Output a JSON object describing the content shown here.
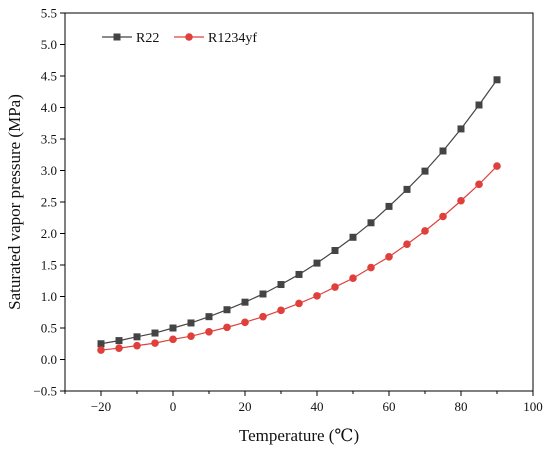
{
  "chart_data": {
    "type": "line",
    "title": "",
    "xlabel": "Temperature (℃)",
    "ylabel": "Saturated vapor pressure (MPa)",
    "xlim": [
      -30,
      100
    ],
    "ylim": [
      -0.5,
      5.5
    ],
    "x_ticks": [
      -20,
      0,
      20,
      40,
      60,
      80,
      100
    ],
    "x_tick_labels": [
      "−20",
      "0",
      "20",
      "40",
      "60",
      "80",
      "100"
    ],
    "y_ticks": [
      -0.5,
      0.0,
      0.5,
      1.0,
      1.5,
      2.0,
      2.5,
      3.0,
      3.5,
      4.0,
      4.5,
      5.0,
      5.5
    ],
    "y_tick_labels": [
      "−0.5",
      "0.0",
      "0.5",
      "1.0",
      "1.5",
      "2.0",
      "2.5",
      "3.0",
      "3.5",
      "4.0",
      "4.5",
      "5.0",
      "5.5"
    ],
    "grid": false,
    "legend_position": "top-left",
    "x": [
      -20,
      -15,
      -10,
      -5,
      0,
      5,
      10,
      15,
      20,
      25,
      30,
      35,
      40,
      45,
      50,
      55,
      60,
      65,
      70,
      75,
      80,
      85,
      90
    ],
    "series": [
      {
        "name": "R22",
        "color": "#444444",
        "marker": "square",
        "values": [
          0.25,
          0.3,
          0.36,
          0.42,
          0.5,
          0.58,
          0.68,
          0.79,
          0.91,
          1.04,
          1.19,
          1.35,
          1.53,
          1.73,
          1.94,
          2.17,
          2.43,
          2.7,
          2.99,
          3.31,
          3.66,
          4.04,
          4.44
        ]
      },
      {
        "name": "R1234yf",
        "color": "#e0403c",
        "marker": "circle",
        "values": [
          0.15,
          0.18,
          0.22,
          0.26,
          0.32,
          0.37,
          0.44,
          0.51,
          0.59,
          0.68,
          0.78,
          0.89,
          1.01,
          1.15,
          1.29,
          1.46,
          1.63,
          1.83,
          2.04,
          2.27,
          2.52,
          2.78,
          3.07
        ]
      }
    ]
  }
}
